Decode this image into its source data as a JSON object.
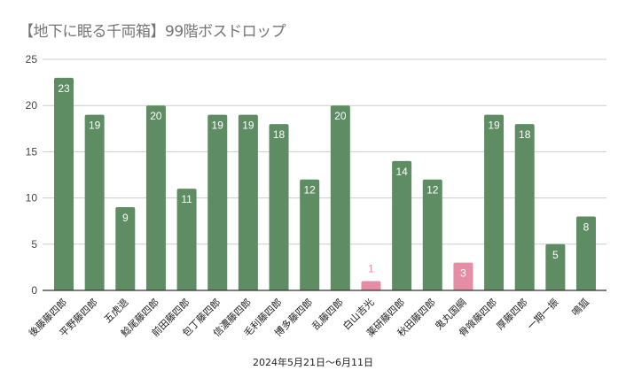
{
  "chart_data": {
    "type": "bar",
    "title": "【地下に眠る千両箱】99階ボスドロップ",
    "xlabel": "2024年5月21日～6月11日",
    "ylabel": "",
    "ylim": [
      0,
      25
    ],
    "yticks": [
      0,
      5,
      10,
      15,
      20,
      25
    ],
    "grid": true,
    "legend": "none",
    "categories": [
      "後藤藤四郎",
      "平野藤四郎",
      "五虎退",
      "鯰尾藤四郎",
      "前田藤四郎",
      "包丁藤四郎",
      "信濃藤四郎",
      "毛利藤四郎",
      "博多藤四郎",
      "乱藤四郎",
      "白山吉光",
      "薬研藤四郎",
      "秋田藤四郎",
      "鬼丸国綱",
      "骨喰藤四郎",
      "厚藤四郎",
      "一期一振",
      "鳴狐"
    ],
    "values": [
      23,
      19,
      9,
      20,
      11,
      19,
      19,
      18,
      12,
      20,
      1,
      14,
      12,
      3,
      19,
      18,
      5,
      8
    ],
    "highlight": [
      false,
      false,
      false,
      false,
      false,
      false,
      false,
      false,
      false,
      false,
      true,
      false,
      false,
      true,
      false,
      false,
      false,
      false
    ],
    "colors": {
      "default": "#5f8d63",
      "highlight": "#e68da6",
      "grid": "#cccccc",
      "axis": "#333333",
      "label_inside": "#ffffff"
    }
  }
}
